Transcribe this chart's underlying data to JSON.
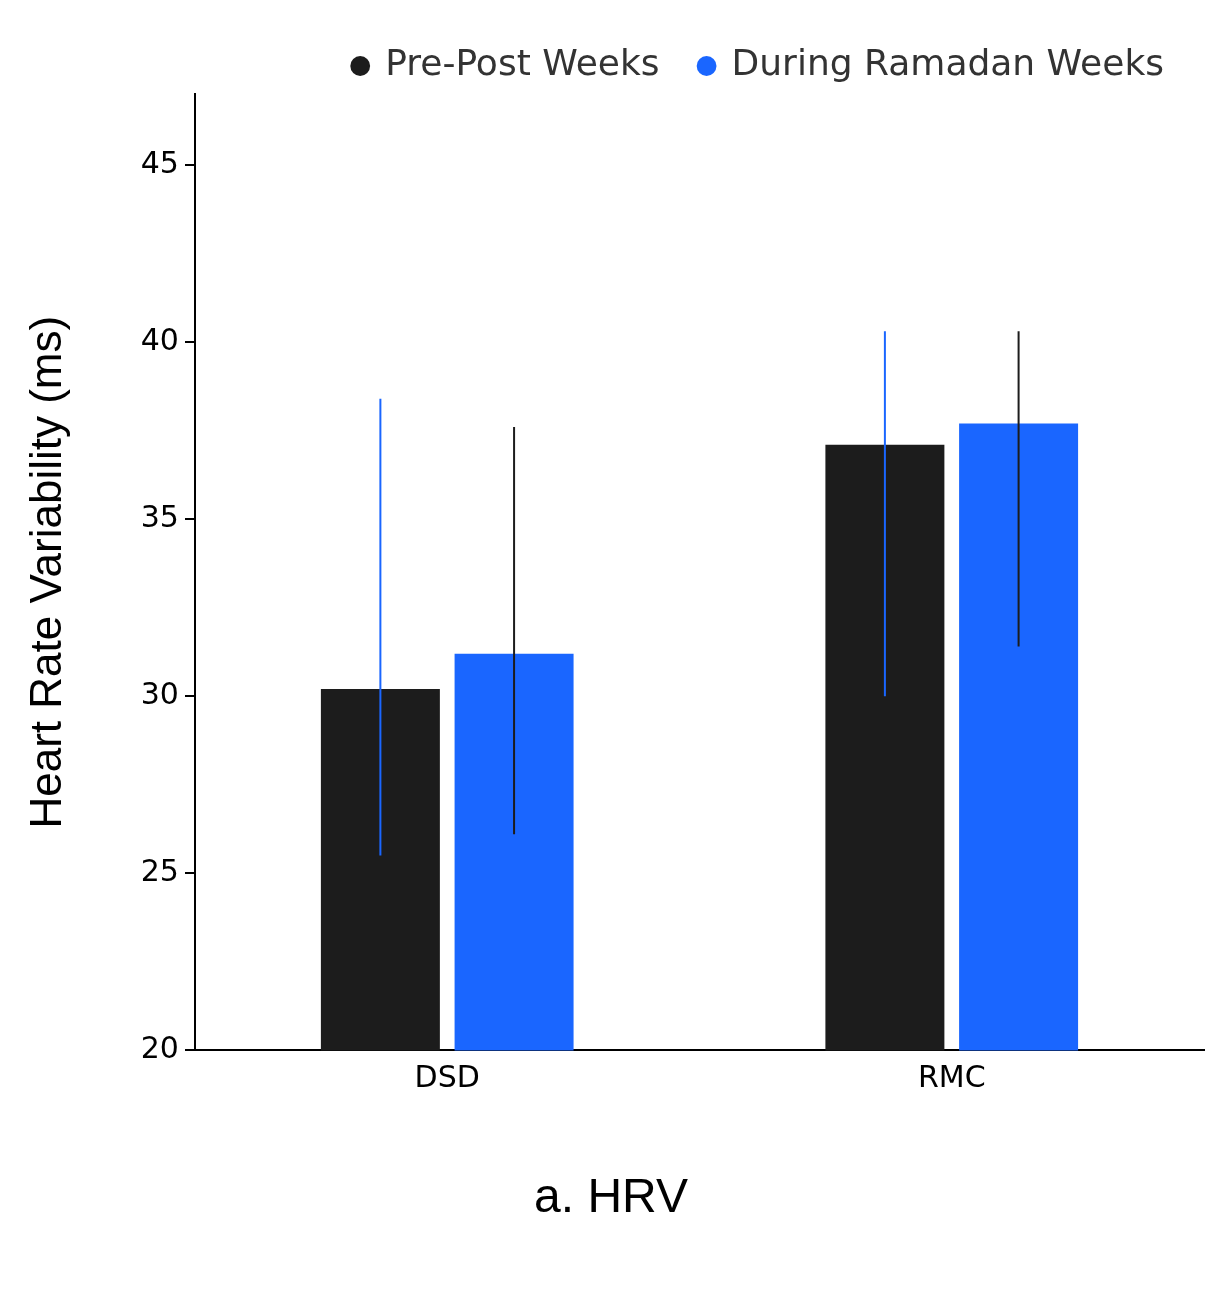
{
  "chart_data": {
    "type": "bar",
    "title": "a. HRV",
    "ylabel": "Heart Rate Variability (ms)",
    "categories": [
      "DSD",
      "RMC"
    ],
    "series": [
      {
        "name": "Pre-Post Weeks",
        "color": "#1c1c1c",
        "values": [
          30.2,
          37.1
        ],
        "errors": [
          [
            25.5,
            38.4
          ],
          [
            30.0,
            40.3
          ]
        ]
      },
      {
        "name": "During Ramadan Weeks",
        "color": "#1a66ff",
        "values": [
          31.2,
          37.7
        ],
        "errors": [
          [
            26.1,
            37.6
          ],
          [
            31.4,
            40.3
          ]
        ]
      }
    ],
    "ylim": [
      20,
      47
    ],
    "yticks": [
      20,
      25,
      30,
      35,
      40,
      45
    ],
    "grid": false,
    "legend": "top right"
  }
}
